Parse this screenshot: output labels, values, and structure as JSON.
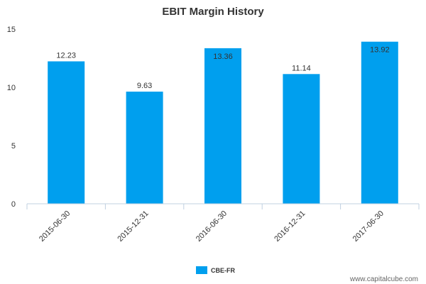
{
  "chart_data": {
    "type": "bar",
    "title": "EBIT Margin History",
    "categories": [
      "2015-06-30",
      "2015-12-31",
      "2016-06-30",
      "2016-12-31",
      "2017-06-30"
    ],
    "series": [
      {
        "name": "CBE-FR",
        "values": [
          12.23,
          9.63,
          13.36,
          11.14,
          13.92
        ]
      }
    ],
    "data_labels": [
      "12.23",
      "9.63",
      "13.36",
      "11.14",
      "13.92"
    ],
    "y_ticks": [
      "0",
      "5",
      "10",
      "15"
    ],
    "ylim": [
      0,
      15
    ],
    "grid": false,
    "legend_position": "bottom-center",
    "bar_color": "#009fee"
  },
  "watermark": "www.capitalcube.com"
}
